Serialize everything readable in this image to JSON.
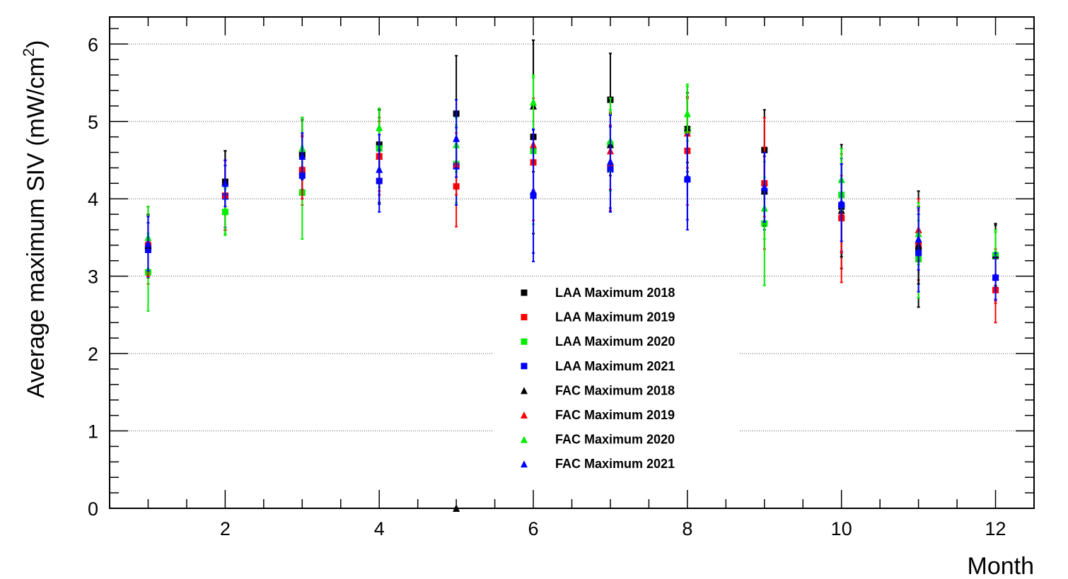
{
  "chart_data": {
    "type": "scatter",
    "title": "",
    "xlabel": "Month",
    "ylabel_main": "Average maximum SIV (mW/cm",
    "ylabel_sup": "2",
    "ylabel_close": ")",
    "xlim": [
      0.5,
      12.5
    ],
    "ylim": [
      0,
      6.35
    ],
    "x_ticks": [
      2,
      4,
      6,
      8,
      10,
      12
    ],
    "y_ticks": [
      0,
      1,
      2,
      3,
      4,
      5,
      6
    ],
    "x_tick_labels": [
      "2",
      "4",
      "6",
      "8",
      "10",
      "12"
    ],
    "y_tick_labels": [
      "0",
      "1",
      "2",
      "3",
      "4",
      "5",
      "6"
    ],
    "grid": "horizontal-dotted",
    "legend_position": "center-bottom",
    "x": [
      1,
      2,
      3,
      4,
      5,
      6,
      7,
      8,
      9,
      10,
      11,
      12
    ],
    "series": [
      {
        "name": "LAA Maximum 2018",
        "marker": "square",
        "color": "#000000",
        "values": [
          3.38,
          4.22,
          4.57,
          4.7,
          5.1,
          4.8,
          5.28,
          4.9,
          4.63,
          3.9,
          3.35,
          3.26
        ],
        "errors": [
          0.4,
          0.4,
          0.45,
          0.45,
          0.75,
          1.25,
          0.6,
          0.55,
          0.52,
          0.8,
          0.75,
          0.4
        ]
      },
      {
        "name": "LAA Maximum 2019",
        "marker": "square",
        "color": "#ff0000",
        "values": [
          3.4,
          4.04,
          4.37,
          4.55,
          4.16,
          4.47,
          4.4,
          4.62,
          4.2,
          3.75,
          3.4,
          2.82
        ],
        "errors": [
          0.5,
          0.45,
          0.45,
          0.5,
          0.52,
          0.75,
          0.55,
          0.7,
          0.85,
          0.83,
          0.45,
          0.42
        ]
      },
      {
        "name": "LAA Maximum 2020",
        "marker": "square",
        "color": "#00ee00",
        "values": [
          3.05,
          3.83,
          4.08,
          4.65,
          4.45,
          4.62,
          4.7,
          4.88,
          3.68,
          4.05,
          3.22,
          3.27
        ],
        "errors": [
          0.5,
          0.3,
          0.6,
          0.5,
          0.5,
          0.95,
          0.6,
          0.6,
          0.8,
          0.6,
          0.5,
          0.3
        ]
      },
      {
        "name": "LAA Maximum 2021",
        "marker": "square",
        "color": "#0000ff",
        "values": [
          3.34,
          4.03,
          4.3,
          4.23,
          4.42,
          4.04,
          4.38,
          4.25,
          4.1,
          3.92,
          3.3,
          2.98
        ],
        "errors": [
          0.35,
          0.4,
          0.3,
          0.4,
          0.5,
          0.85,
          0.55,
          0.65,
          0.5,
          0.6,
          0.5,
          0.3
        ]
      },
      {
        "name": "FAC Maximum 2018",
        "marker": "triangle",
        "color": "#000000",
        "values": [
          3.4,
          4.22,
          4.65,
          4.55,
          0.0,
          5.2,
          4.7,
          4.92,
          4.1,
          3.85,
          3.4,
          3.28
        ],
        "errors": [
          0.4,
          0.4,
          0.4,
          0.6,
          0.0,
          0.85,
          0.4,
          0.45,
          0.45,
          0.6,
          0.5,
          0.4
        ]
      },
      {
        "name": "FAC Maximum 2019",
        "marker": "triangle",
        "color": "#ff0000",
        "values": [
          3.45,
          4.05,
          4.4,
          4.55,
          4.45,
          4.7,
          4.62,
          4.85,
          4.22,
          3.8,
          3.6,
          3.0
        ],
        "errors": [
          0.45,
          0.45,
          0.4,
          0.45,
          0.4,
          0.6,
          0.5,
          0.45,
          0.45,
          0.5,
          0.4,
          0.35
        ]
      },
      {
        "name": "FAC Maximum 2020",
        "marker": "triangle",
        "color": "#00ee00",
        "values": [
          3.5,
          3.85,
          4.65,
          4.92,
          4.7,
          5.25,
          4.75,
          5.1,
          3.88,
          4.25,
          3.55,
          3.3
        ],
        "errors": [
          0.4,
          0.3,
          0.4,
          0.25,
          0.35,
          0.35,
          0.4,
          0.35,
          0.4,
          0.4,
          0.4,
          0.3
        ]
      },
      {
        "name": "FAC Maximum 2021",
        "marker": "triangle",
        "color": "#0000ff",
        "values": [
          3.42,
          4.2,
          4.55,
          4.38,
          4.78,
          4.1,
          4.48,
          4.28,
          4.15,
          3.95,
          3.48,
          3.0
        ],
        "errors": [
          0.35,
          0.3,
          0.3,
          0.45,
          0.5,
          0.8,
          0.6,
          0.55,
          0.45,
          0.5,
          0.4,
          0.3
        ]
      }
    ]
  }
}
